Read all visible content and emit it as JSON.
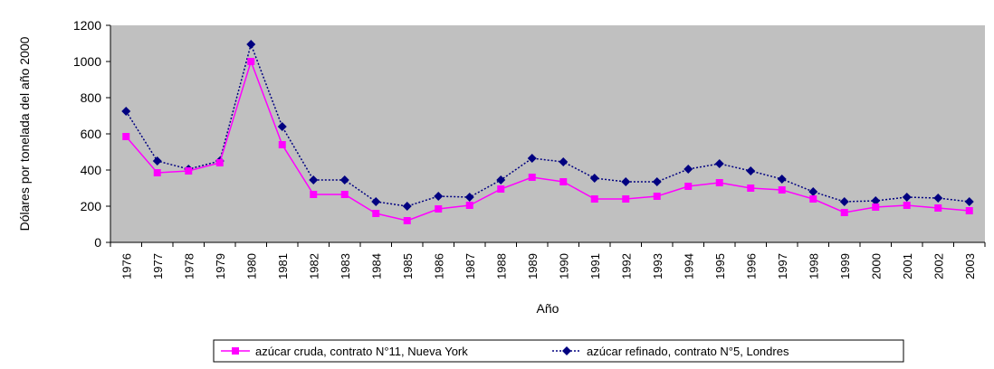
{
  "chart_data": {
    "type": "line",
    "title": "",
    "xlabel": "Año",
    "ylabel": "Dólares por tonelada del año 2000",
    "categories": [
      "1976",
      "1977",
      "1978",
      "1979",
      "1980",
      "1981",
      "1982",
      "1983",
      "1984",
      "1985",
      "1986",
      "1987",
      "1988",
      "1989",
      "1990",
      "1991",
      "1992",
      "1993",
      "1994",
      "1995",
      "1996",
      "1997",
      "1998",
      "1999",
      "2000",
      "2001",
      "2002",
      "2003"
    ],
    "ylim": [
      0,
      1200
    ],
    "yticks": [
      0,
      200,
      400,
      600,
      800,
      1000,
      1200
    ],
    "grid": false,
    "legend_position": "bottom",
    "plot_background": "#c0c0c0",
    "series": [
      {
        "name": "azúcar cruda, contrato N°11, Nueva York",
        "color": "#ff00ff",
        "marker": "square",
        "values": [
          585,
          385,
          395,
          440,
          1000,
          540,
          265,
          265,
          160,
          120,
          185,
          205,
          295,
          360,
          335,
          240,
          240,
          255,
          310,
          330,
          300,
          290,
          240,
          165,
          195,
          205,
          190,
          175
        ]
      },
      {
        "name": "azúcar refinado, contrato N°5, Londres",
        "color": "#000080",
        "marker": "diamond",
        "values": [
          725,
          450,
          405,
          450,
          1095,
          640,
          345,
          345,
          225,
          200,
          255,
          250,
          345,
          465,
          445,
          355,
          335,
          335,
          405,
          435,
          395,
          350,
          280,
          225,
          230,
          250,
          245,
          225
        ]
      }
    ]
  }
}
